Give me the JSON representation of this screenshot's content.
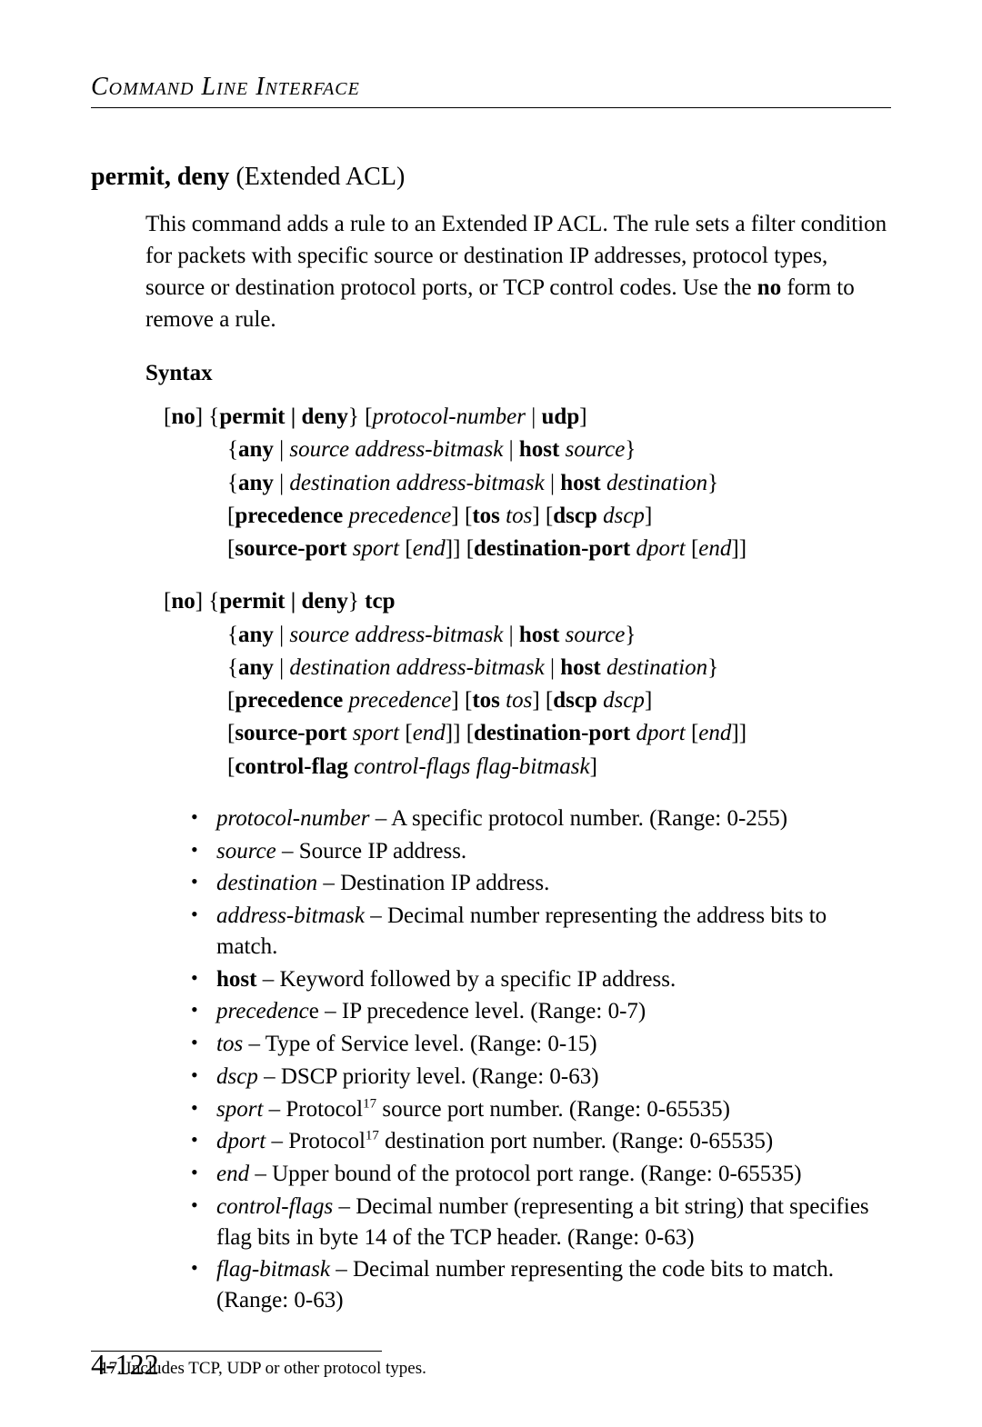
{
  "header": "Command Line Interface",
  "section_title_bold": "permit, deny",
  "section_title_rest": " (Extended ACL)",
  "intro_text": "This command adds a rule to an Extended IP ACL. The rule sets a filter condition for packets with specific source or destination IP addresses, protocol types, source or destination protocol ports, or TCP control codes. Use the ",
  "intro_bold": "no",
  "intro_text2": " form to remove a rule.",
  "syntax_heading": "Syntax",
  "syntax1": {
    "l1_a": "[",
    "l1_b": "no",
    "l1_c": "] {",
    "l1_d": "permit | deny",
    "l1_e": "} [",
    "l1_f": "protocol-number",
    "l1_g": " | ",
    "l1_h": "udp",
    "l1_i": "]",
    "l2_a": "{",
    "l2_b": "any",
    "l2_c": " | ",
    "l2_d": "source address-bitmask",
    "l2_e": " | ",
    "l2_f": "host",
    "l2_g": " ",
    "l2_h": "source",
    "l2_i": "}",
    "l3_a": "{",
    "l3_b": "any",
    "l3_c": " | ",
    "l3_d": "destination address-bitmask",
    "l3_e": " | ",
    "l3_f": "host",
    "l3_g": " ",
    "l3_h": "destination",
    "l3_i": "}",
    "l4_a": "[",
    "l4_b": "precedence",
    "l4_c": " ",
    "l4_d": "precedence",
    "l4_e": "] [",
    "l4_f": "tos",
    "l4_g": " ",
    "l4_h": "tos",
    "l4_i": "] [",
    "l4_j": "dscp",
    "l4_k": " ",
    "l4_l": "dscp",
    "l4_m": "]",
    "l5_a": "[",
    "l5_b": "source-port",
    "l5_c": " ",
    "l5_d": "sport",
    "l5_e": " [",
    "l5_f": "end",
    "l5_g": "]] [",
    "l5_h": "destination-port",
    "l5_i": " ",
    "l5_j": "dport",
    "l5_k": " [",
    "l5_l": "end",
    "l5_m": "]]"
  },
  "syntax2": {
    "l1_a": "[",
    "l1_b": "no",
    "l1_c": "] {",
    "l1_d": "permit | deny",
    "l1_e": "}",
    "l1_f": " tcp",
    "l2_a": "{",
    "l2_b": "any",
    "l2_c": " | ",
    "l2_d": "source address-bitmask",
    "l2_e": " | ",
    "l2_f": "host",
    "l2_g": " ",
    "l2_h": "source",
    "l2_i": "}",
    "l3_a": "{",
    "l3_b": "any",
    "l3_c": " | ",
    "l3_d": "destination address-bitmask",
    "l3_e": " | ",
    "l3_f": "host",
    "l3_g": " ",
    "l3_h": "destination",
    "l3_i": "}",
    "l4_a": "[",
    "l4_b": "precedence",
    "l4_c": " ",
    "l4_d": "precedence",
    "l4_e": "] [",
    "l4_f": "tos",
    "l4_g": " ",
    "l4_h": "tos",
    "l4_i": "] [",
    "l4_j": "dscp",
    "l4_k": " ",
    "l4_l": "dscp",
    "l4_m": "]",
    "l5_a": "[",
    "l5_b": "source-port",
    "l5_c": " ",
    "l5_d": "sport",
    "l5_e": " [",
    "l5_f": "end",
    "l5_g": "]] [",
    "l5_h": "destination-port",
    "l5_i": " ",
    "l5_j": "dport",
    "l5_k": " [",
    "l5_l": "end",
    "l5_m": "]]",
    "l6_a": "[",
    "l6_b": "control-flag",
    "l6_c": " ",
    "l6_d": "control-flags flag-bitmask",
    "l6_e": "]"
  },
  "params": [
    {
      "term": "protocol-number",
      "term_style": "ital",
      "desc": " – A specific protocol number. (Range: 0-255)"
    },
    {
      "term": "source",
      "term_style": "ital",
      "desc": " – Source IP address."
    },
    {
      "term": "destination",
      "term_style": "ital",
      "desc": " – Destination IP address."
    },
    {
      "term": "address-bitmask",
      "term_style": "ital",
      "desc": " – Decimal number representing the address bits to match."
    },
    {
      "term": "host",
      "term_style": "bold",
      "desc": " – Keyword followed by a specific IP address."
    },
    {
      "term": "precedenc",
      "term_style": "ital",
      "term2": "e",
      "desc": " – IP precedence level. (Range: 0-7)"
    },
    {
      "term": "tos",
      "term_style": "ital",
      "desc": " – Type of Service level. (Range: 0-15)"
    },
    {
      "term": "dscp",
      "term_style": "ital",
      "desc": " – DSCP priority level. (Range: 0-63)"
    },
    {
      "term": "sport",
      "term_style": "ital",
      "desc_pre": " – Protocol",
      "sup": "17",
      "desc": " source port number. (Range: 0-65535)"
    },
    {
      "term": "dport",
      "term_style": "ital",
      "desc_pre": " – Protocol",
      "sup": "17",
      "desc": " destination port number. (Range: 0-65535)"
    },
    {
      "term": "end",
      "term_style": "ital",
      "desc": " – Upper bound of the protocol port range. (Range: 0-65535)"
    },
    {
      "term": "control-flags",
      "term_style": "ital",
      "desc": " – Decimal number (representing a bit string) that specifies flag bits in byte 14 of the TCP header. (Range: 0-63)"
    },
    {
      "term": "flag-bitmask",
      "term_style": "ital",
      "desc": " – Decimal number representing the code bits to match. (Range: 0-63)"
    }
  ],
  "footnote_num": "17.",
  "footnote_text": "  Includes TCP, UDP or other protocol types.",
  "page_number": "4-122"
}
